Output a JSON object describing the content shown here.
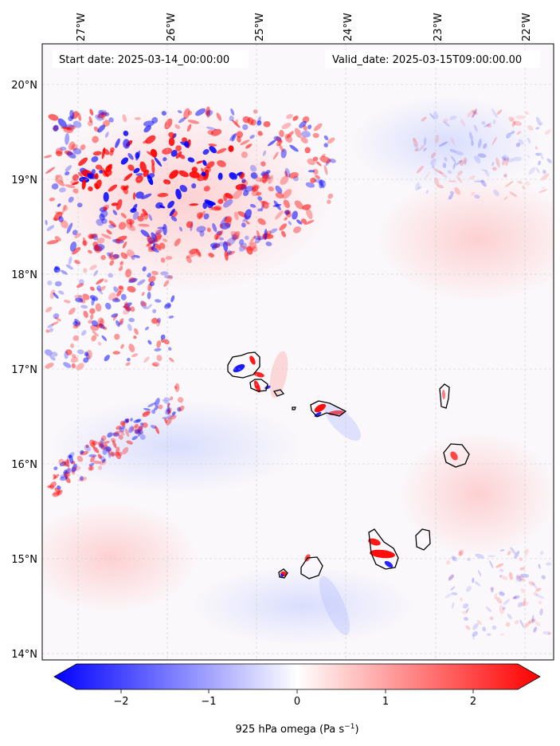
{
  "map": {
    "top_axis_labels": [
      "27°W",
      "26°W",
      "25°W",
      "24°W",
      "23°W",
      "22°W"
    ],
    "left_axis_labels": [
      "20°N",
      "19°N",
      "18°N",
      "17°N",
      "16°N",
      "15°N",
      "14°N"
    ],
    "start_date": "Start date: 2025-03-14_00:00:00",
    "valid_date": "Valid_date: 2025-03-15T09:00:00.00",
    "colormap": [
      "#0000ff",
      "#ffffff",
      "#ff0000"
    ],
    "coastline_color": "#000000"
  },
  "colorbar": {
    "ticks": [
      "−2",
      "−1",
      "0",
      "1",
      "2"
    ],
    "label": "925 hPa omega (Pa s",
    "label_sup": "−1",
    "label_close": ")",
    "range": [
      -2.6,
      2.6
    ]
  }
}
